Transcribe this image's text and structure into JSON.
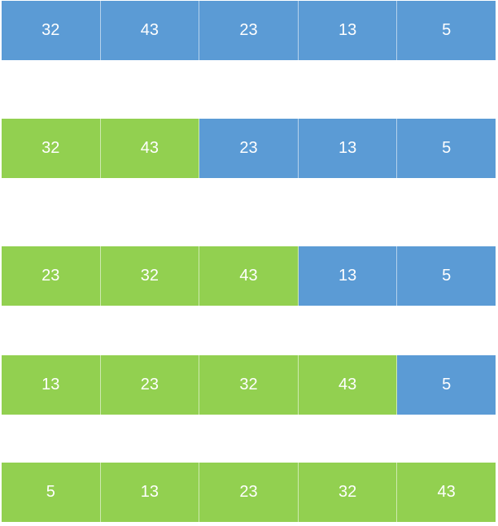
{
  "colors": {
    "sorted": "#92d050",
    "unsorted": "#5b9bd5"
  },
  "rows": [
    {
      "cells": [
        {
          "value": "32",
          "state": "unsorted"
        },
        {
          "value": "43",
          "state": "unsorted"
        },
        {
          "value": "23",
          "state": "unsorted"
        },
        {
          "value": "13",
          "state": "unsorted"
        },
        {
          "value": "5",
          "state": "unsorted"
        }
      ]
    },
    {
      "cells": [
        {
          "value": "32",
          "state": "sorted"
        },
        {
          "value": "43",
          "state": "sorted"
        },
        {
          "value": "23",
          "state": "unsorted"
        },
        {
          "value": "13",
          "state": "unsorted"
        },
        {
          "value": "5",
          "state": "unsorted"
        }
      ]
    },
    {
      "cells": [
        {
          "value": "23",
          "state": "sorted"
        },
        {
          "value": "32",
          "state": "sorted"
        },
        {
          "value": "43",
          "state": "sorted"
        },
        {
          "value": "13",
          "state": "unsorted"
        },
        {
          "value": "5",
          "state": "unsorted"
        }
      ]
    },
    {
      "cells": [
        {
          "value": "13",
          "state": "sorted"
        },
        {
          "value": "23",
          "state": "sorted"
        },
        {
          "value": "32",
          "state": "sorted"
        },
        {
          "value": "43",
          "state": "sorted"
        },
        {
          "value": "5",
          "state": "unsorted"
        }
      ]
    },
    {
      "cells": [
        {
          "value": "5",
          "state": "sorted"
        },
        {
          "value": "13",
          "state": "sorted"
        },
        {
          "value": "23",
          "state": "sorted"
        },
        {
          "value": "32",
          "state": "sorted"
        },
        {
          "value": "43",
          "state": "sorted"
        }
      ]
    }
  ]
}
